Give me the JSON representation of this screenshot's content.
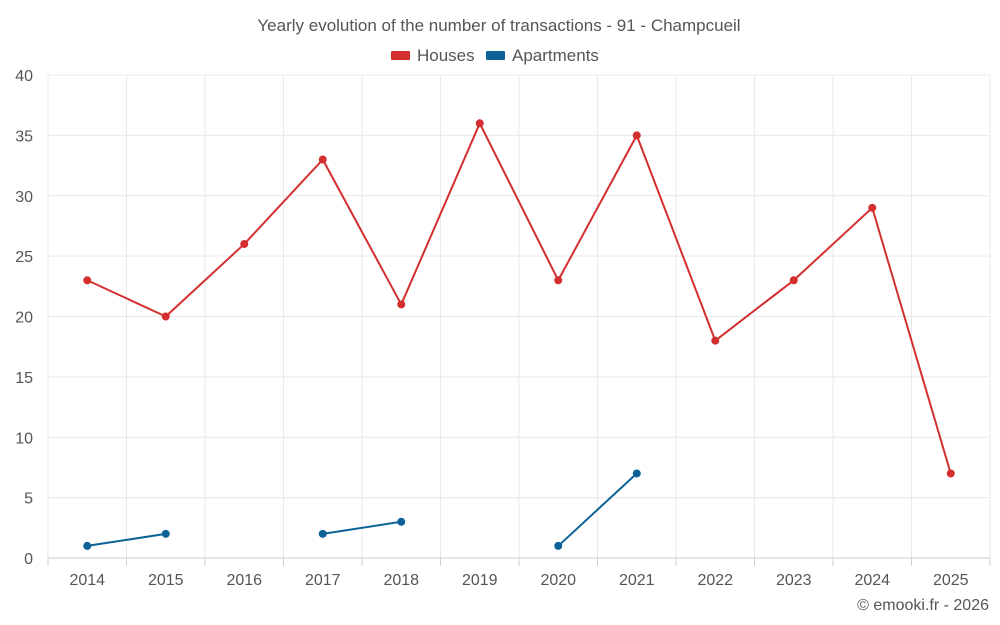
{
  "chart_data": {
    "type": "line",
    "title": "Yearly evolution of the number of transactions - 91 - Champcueil",
    "categories": [
      "2014",
      "2015",
      "2016",
      "2017",
      "2018",
      "2019",
      "2020",
      "2021",
      "2022",
      "2023",
      "2024",
      "2025"
    ],
    "series": [
      {
        "name": "Houses",
        "color": "#d32f2f",
        "values": [
          23,
          20,
          26,
          33,
          21,
          36,
          23,
          35,
          18,
          23,
          29,
          7
        ]
      },
      {
        "name": "Apartments",
        "color": "#0d6297",
        "values": [
          1,
          2,
          null,
          2,
          3,
          null,
          1,
          7,
          null,
          null,
          null,
          null
        ]
      }
    ],
    "ylim": [
      0,
      40
    ],
    "yticks": [
      "0",
      "5",
      "10",
      "15",
      "20",
      "25",
      "30",
      "35",
      "40"
    ],
    "xlabel": "",
    "ylabel": "",
    "grid": true,
    "legend_position": "top-center",
    "credit": "© emooki.fr - 2026"
  }
}
